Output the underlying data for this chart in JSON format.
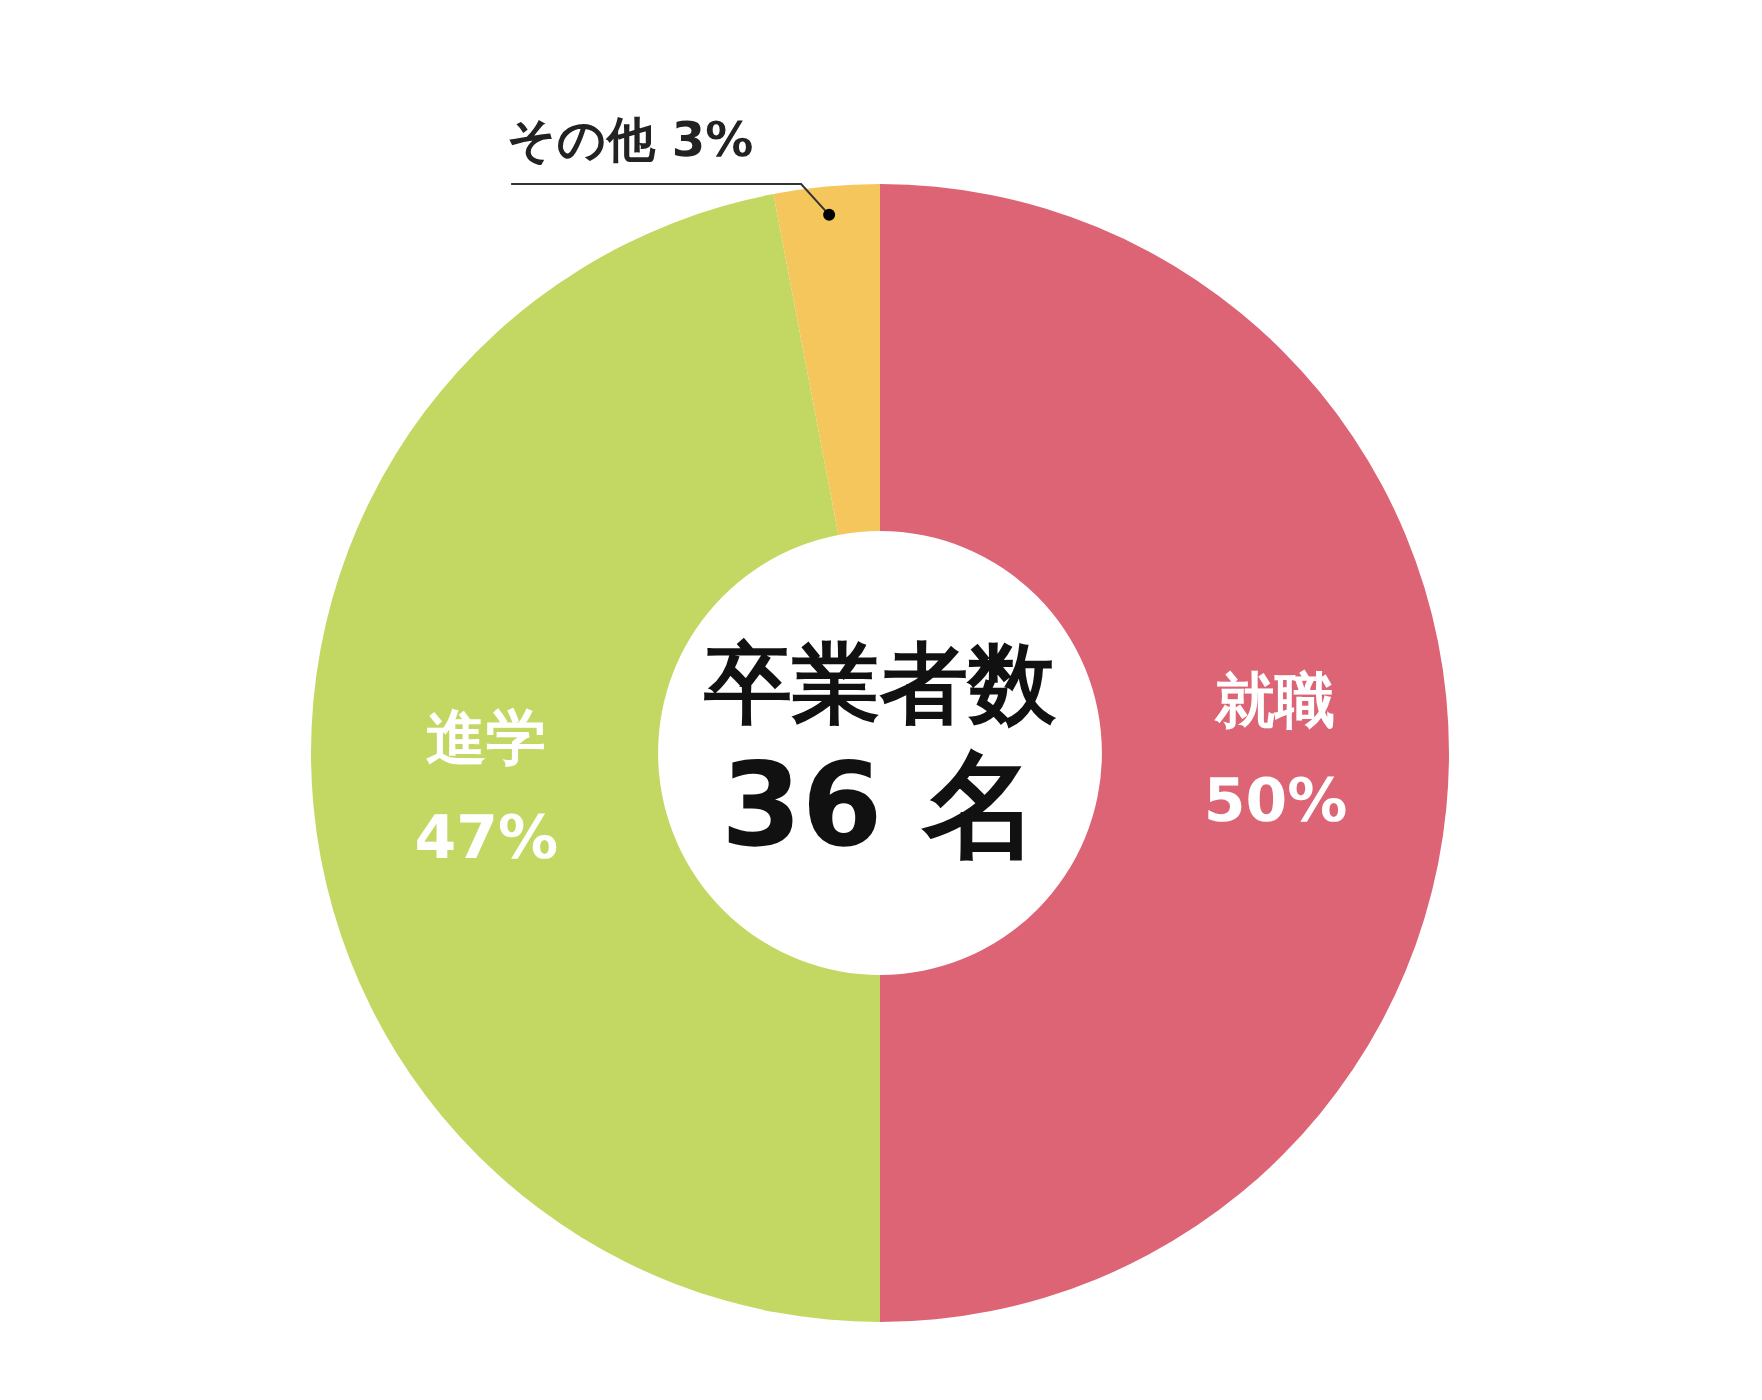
{
  "chart_data": {
    "type": "donut",
    "categories": [
      "就職",
      "進学",
      "その他"
    ],
    "values": [
      50,
      47,
      3
    ],
    "colors": [
      "#dc6474",
      "#c2d862",
      "#f5c65c"
    ],
    "value_labels": [
      "50%",
      "47%",
      "3%"
    ],
    "annotations": [
      "卒業者数",
      "36 名"
    ],
    "legend": false
  }
}
